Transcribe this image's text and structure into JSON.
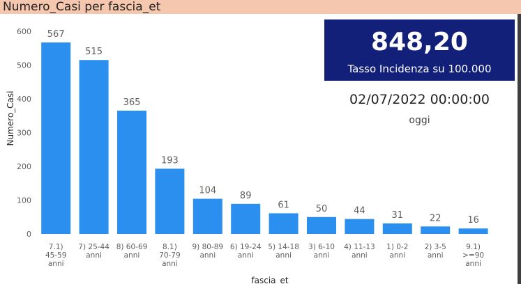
{
  "header": {
    "title": "Numero_Casi per fascia_et"
  },
  "kpi": {
    "value": "848,20",
    "label": "Tasso Incidenza su 100.000"
  },
  "date": {
    "value": "02/07/2022 00:00:00",
    "sublabel": "oggi"
  },
  "colors": {
    "bar": "#2a8fef",
    "kpi_bg": "#12207a",
    "title_bg": "#f4c7ae"
  },
  "chart_data": {
    "type": "bar",
    "title": "Numero_Casi per fascia_et",
    "xlabel": "fascia_et",
    "ylabel": "Numero_Casi",
    "ylim": [
      0,
      600
    ],
    "yticks": [
      0,
      100,
      200,
      300,
      400,
      500,
      600
    ],
    "grid": false,
    "categories": [
      [
        "7.1)",
        "45-59",
        "anni"
      ],
      [
        "7) 25-44",
        "anni"
      ],
      [
        "8) 60-69",
        "anni"
      ],
      [
        "8.1)",
        "70-79",
        "anni"
      ],
      [
        "9) 80-89",
        "anni"
      ],
      [
        "6) 19-24",
        "anni"
      ],
      [
        "5) 14-18",
        "anni"
      ],
      [
        "3) 6-10",
        "anni"
      ],
      [
        "4) 11-13",
        "anni"
      ],
      [
        "1) 0-2",
        "anni"
      ],
      [
        "2) 3-5",
        "anni"
      ],
      [
        "9.1)",
        ">=90",
        "anni"
      ]
    ],
    "values": [
      567,
      515,
      365,
      193,
      104,
      89,
      61,
      50,
      44,
      31,
      22,
      16
    ]
  }
}
